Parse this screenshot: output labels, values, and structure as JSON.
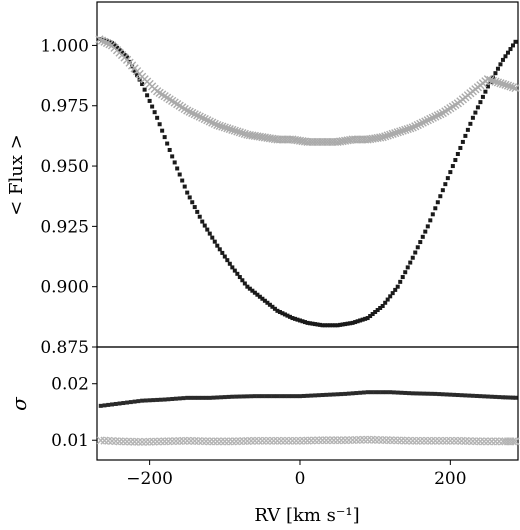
{
  "chart_data": [
    {
      "type": "scatter",
      "panel": "top",
      "ylabel": "< Flux >",
      "xlim": [
        -270,
        290
      ],
      "ylim": [
        0.875,
        1.018
      ],
      "yticks": [
        "0.875",
        "0.900",
        "0.925",
        "0.950",
        "0.975",
        "1.000"
      ],
      "grid": false,
      "series": [
        {
          "marker": "square",
          "color": "#1a1a1a",
          "x": [
            -270,
            -250,
            -230,
            -210,
            -190,
            -170,
            -150,
            -130,
            -110,
            -90,
            -70,
            -50,
            -30,
            -10,
            10,
            30,
            50,
            70,
            90,
            110,
            130,
            150,
            170,
            190,
            210,
            230,
            250,
            270,
            290
          ],
          "y": [
            1.003,
            1.001,
            0.995,
            0.984,
            0.97,
            0.954,
            0.939,
            0.927,
            0.917,
            0.908,
            0.9,
            0.895,
            0.89,
            0.887,
            0.885,
            0.884,
            0.884,
            0.885,
            0.887,
            0.892,
            0.9,
            0.912,
            0.925,
            0.94,
            0.955,
            0.97,
            0.983,
            0.994,
            1.003
          ]
        },
        {
          "marker": "cross",
          "color": "#aaaaaa",
          "x": [
            -270,
            -250,
            -230,
            -210,
            -190,
            -170,
            -150,
            -130,
            -110,
            -90,
            -70,
            -50,
            -30,
            -10,
            10,
            30,
            50,
            70,
            90,
            110,
            130,
            150,
            170,
            190,
            210,
            230,
            250,
            270,
            290
          ],
          "y": [
            1.003,
            1.0,
            0.994,
            0.987,
            0.981,
            0.977,
            0.973,
            0.97,
            0.967,
            0.965,
            0.963,
            0.962,
            0.961,
            0.961,
            0.96,
            0.96,
            0.96,
            0.961,
            0.961,
            0.962,
            0.964,
            0.966,
            0.969,
            0.972,
            0.976,
            0.981,
            0.986,
            0.984,
            0.982
          ]
        }
      ]
    },
    {
      "type": "scatter",
      "panel": "bottom",
      "ylabel": "σ",
      "xlabel": "RV [km s⁻¹]",
      "xlim": [
        -270,
        290
      ],
      "ylim": [
        0.0065,
        0.0265
      ],
      "xticks": [
        "−200",
        "0",
        "200"
      ],
      "yticks": [
        "0.01",
        "0.02"
      ],
      "grid": false,
      "series": [
        {
          "marker": "square",
          "color": "#2a2a2a",
          "x": [
            -270,
            -240,
            -210,
            -180,
            -150,
            -120,
            -90,
            -60,
            -30,
            0,
            30,
            60,
            90,
            120,
            150,
            180,
            210,
            240,
            270,
            290
          ],
          "y": [
            0.016,
            0.0165,
            0.017,
            0.0172,
            0.0175,
            0.0175,
            0.0177,
            0.0178,
            0.0178,
            0.0178,
            0.018,
            0.0182,
            0.0185,
            0.0185,
            0.0183,
            0.0182,
            0.018,
            0.0178,
            0.0176,
            0.0175
          ]
        },
        {
          "marker": "cross",
          "color": "#b4b4b4",
          "x": [
            -270,
            -240,
            -210,
            -180,
            -150,
            -120,
            -90,
            -60,
            -30,
            0,
            30,
            60,
            90,
            120,
            150,
            180,
            210,
            240,
            270,
            290
          ],
          "y": [
            0.01,
            0.0098,
            0.0097,
            0.0098,
            0.0099,
            0.0098,
            0.0098,
            0.0099,
            0.0099,
            0.0099,
            0.01,
            0.01,
            0.0101,
            0.01,
            0.0099,
            0.0099,
            0.0099,
            0.0098,
            0.0098,
            0.0098
          ]
        }
      ]
    }
  ]
}
